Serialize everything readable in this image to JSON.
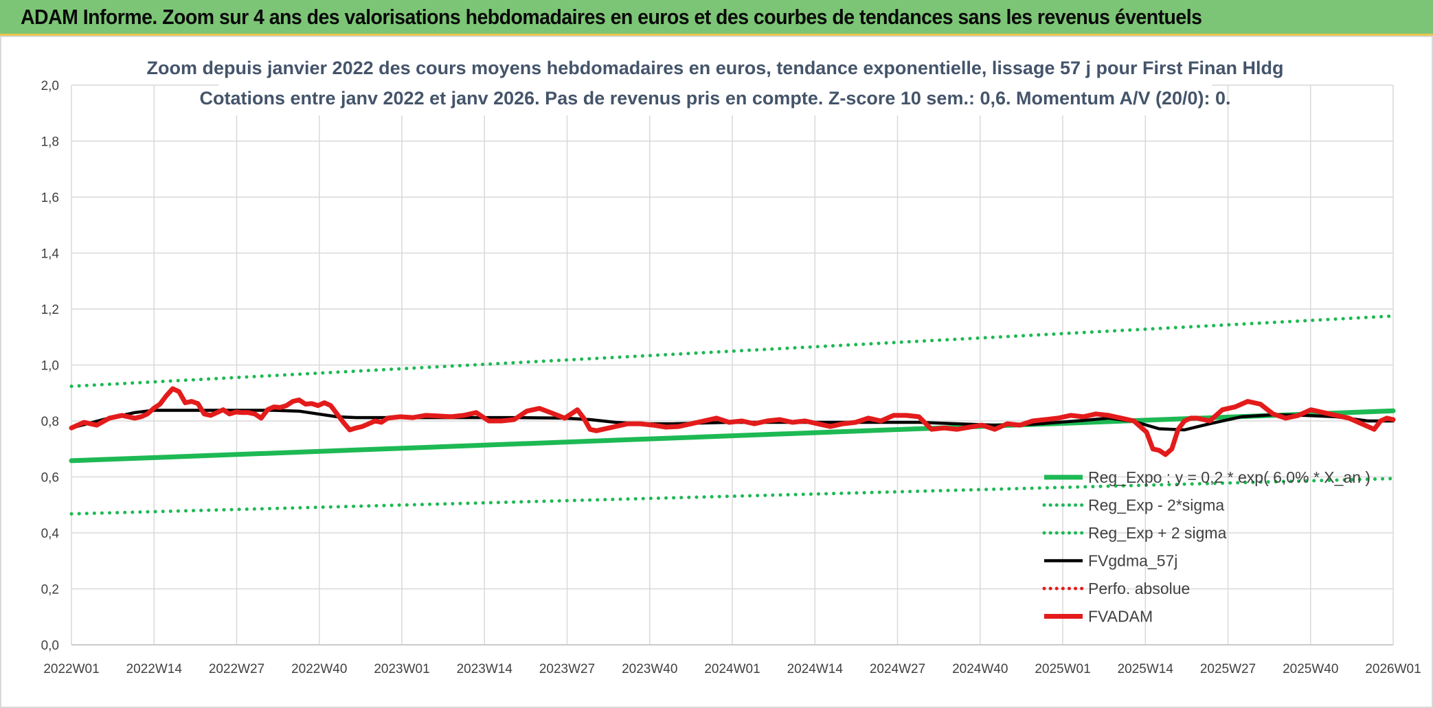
{
  "header": {
    "title": "ADAM Informe. Zoom sur 4 ans des valorisations hebdomadaires en euros et des courbes de tendances sans les revenus éventuels"
  },
  "chart_data": {
    "type": "line",
    "title_line1": "Zoom depuis janvier 2022 des cours moyens hebdomadaires en euros, tendance exponentielle, lissage 57 j pour First Finan Hldg",
    "title_line2": "Cotations entre janv 2022 et janv 2026. Pas de revenus pris en compte. Z-score 10 sem.: 0,6. Momentum A/V (20/0): 0.",
    "x_categories": [
      "2022W01",
      "2022W14",
      "2022W27",
      "2022W40",
      "2023W01",
      "2023W14",
      "2023W27",
      "2023W40",
      "2024W01",
      "2024W14",
      "2024W27",
      "2024W40",
      "2025W01",
      "2025W14",
      "2025W27",
      "2025W40",
      "2026W01"
    ],
    "ylim": [
      0,
      2
    ],
    "y_ticks": [
      "0,0",
      "0,2",
      "0,4",
      "0,6",
      "0,8",
      "1,0",
      "1,2",
      "1,4",
      "1,6",
      "1,8",
      "2,0"
    ],
    "grid": true,
    "legend_position": "bottom-right",
    "series": [
      {
        "name": "Reg_Expo : y = 0,2 * exp( 6,0% * X_an )",
        "color": "#1db954",
        "style": "solid-thick",
        "x": [
          0,
          209
        ],
        "y": [
          0.658,
          0.836
        ]
      },
      {
        "name": "Reg_Exp - 2*sigma",
        "color": "#1db954",
        "style": "dotted",
        "x": [
          0,
          209
        ],
        "y": [
          0.468,
          0.594
        ]
      },
      {
        "name": "Reg_Exp + 2 sigma",
        "color": "#1db954",
        "style": "dotted",
        "x": [
          0,
          209
        ],
        "y": [
          0.924,
          1.175
        ]
      },
      {
        "name": "FVgdma_57j",
        "color": "#000000",
        "style": "solid",
        "x": [
          0,
          5,
          10,
          13,
          20,
          26,
          32,
          36,
          39,
          42,
          45,
          52,
          60,
          70,
          78,
          82,
          86,
          90,
          95,
          104,
          110,
          117,
          125,
          134,
          140,
          146,
          152,
          156,
          160,
          164,
          168,
          172,
          176,
          180,
          185,
          190,
          195,
          200,
          205,
          209
        ],
        "y": [
          0.775,
          0.805,
          0.83,
          0.838,
          0.838,
          0.838,
          0.838,
          0.835,
          0.825,
          0.815,
          0.812,
          0.812,
          0.812,
          0.812,
          0.81,
          0.805,
          0.795,
          0.79,
          0.79,
          0.795,
          0.795,
          0.795,
          0.795,
          0.795,
          0.79,
          0.785,
          0.788,
          0.795,
          0.802,
          0.81,
          0.798,
          0.772,
          0.768,
          0.79,
          0.815,
          0.822,
          0.82,
          0.815,
          0.8,
          0.8
        ]
      },
      {
        "name": "Perfo. absolue",
        "color": "#e31b1b",
        "style": "dotted",
        "x": [],
        "y": []
      },
      {
        "name": "FVADAM",
        "color": "#e31b1b",
        "style": "solid-thick",
        "x": [
          0,
          2,
          4,
          6,
          8,
          10,
          11,
          12,
          13,
          14,
          15,
          16,
          17,
          18,
          19,
          20,
          21,
          22,
          23,
          24,
          25,
          26,
          27,
          28,
          29,
          30,
          31,
          32,
          33,
          34,
          35,
          36,
          37,
          38,
          39,
          40,
          41,
          42,
          43,
          44,
          45,
          46,
          47,
          48,
          49,
          50,
          52,
          54,
          56,
          58,
          60,
          62,
          64,
          66,
          68,
          70,
          72,
          74,
          76,
          78,
          79,
          80,
          81,
          82,
          83,
          84,
          85,
          86,
          88,
          90,
          92,
          94,
          96,
          98,
          100,
          102,
          104,
          106,
          108,
          110,
          112,
          114,
          116,
          118,
          120,
          122,
          124,
          126,
          128,
          130,
          132,
          134,
          136,
          138,
          140,
          142,
          144,
          146,
          148,
          150,
          152,
          154,
          156,
          158,
          160,
          162,
          164,
          166,
          168,
          169,
          170,
          171,
          172,
          173,
          174,
          175,
          176,
          177,
          178,
          180,
          182,
          184,
          186,
          188,
          190,
          192,
          194,
          196,
          198,
          200,
          202,
          204,
          206,
          207,
          208,
          209
        ],
        "y": [
          0.775,
          0.795,
          0.785,
          0.81,
          0.82,
          0.81,
          0.815,
          0.825,
          0.845,
          0.86,
          0.89,
          0.915,
          0.905,
          0.865,
          0.87,
          0.862,
          0.825,
          0.82,
          0.83,
          0.84,
          0.825,
          0.832,
          0.83,
          0.83,
          0.825,
          0.81,
          0.84,
          0.85,
          0.848,
          0.855,
          0.87,
          0.875,
          0.86,
          0.862,
          0.855,
          0.865,
          0.855,
          0.825,
          0.795,
          0.768,
          0.775,
          0.78,
          0.79,
          0.8,
          0.795,
          0.81,
          0.815,
          0.812,
          0.82,
          0.818,
          0.815,
          0.82,
          0.83,
          0.8,
          0.8,
          0.805,
          0.835,
          0.845,
          0.828,
          0.81,
          0.825,
          0.84,
          0.81,
          0.77,
          0.765,
          0.77,
          0.775,
          0.78,
          0.79,
          0.79,
          0.785,
          0.778,
          0.78,
          0.79,
          0.8,
          0.81,
          0.795,
          0.8,
          0.79,
          0.8,
          0.805,
          0.795,
          0.8,
          0.79,
          0.78,
          0.79,
          0.795,
          0.81,
          0.8,
          0.82,
          0.82,
          0.815,
          0.77,
          0.775,
          0.77,
          0.778,
          0.785,
          0.77,
          0.79,
          0.785,
          0.8,
          0.805,
          0.81,
          0.82,
          0.815,
          0.825,
          0.82,
          0.81,
          0.8,
          0.78,
          0.76,
          0.7,
          0.695,
          0.68,
          0.7,
          0.77,
          0.8,
          0.81,
          0.81,
          0.8,
          0.84,
          0.85,
          0.87,
          0.86,
          0.825,
          0.81,
          0.82,
          0.84,
          0.83,
          0.82,
          0.81,
          0.79,
          0.77,
          0.8,
          0.81,
          0.805
        ]
      }
    ]
  }
}
